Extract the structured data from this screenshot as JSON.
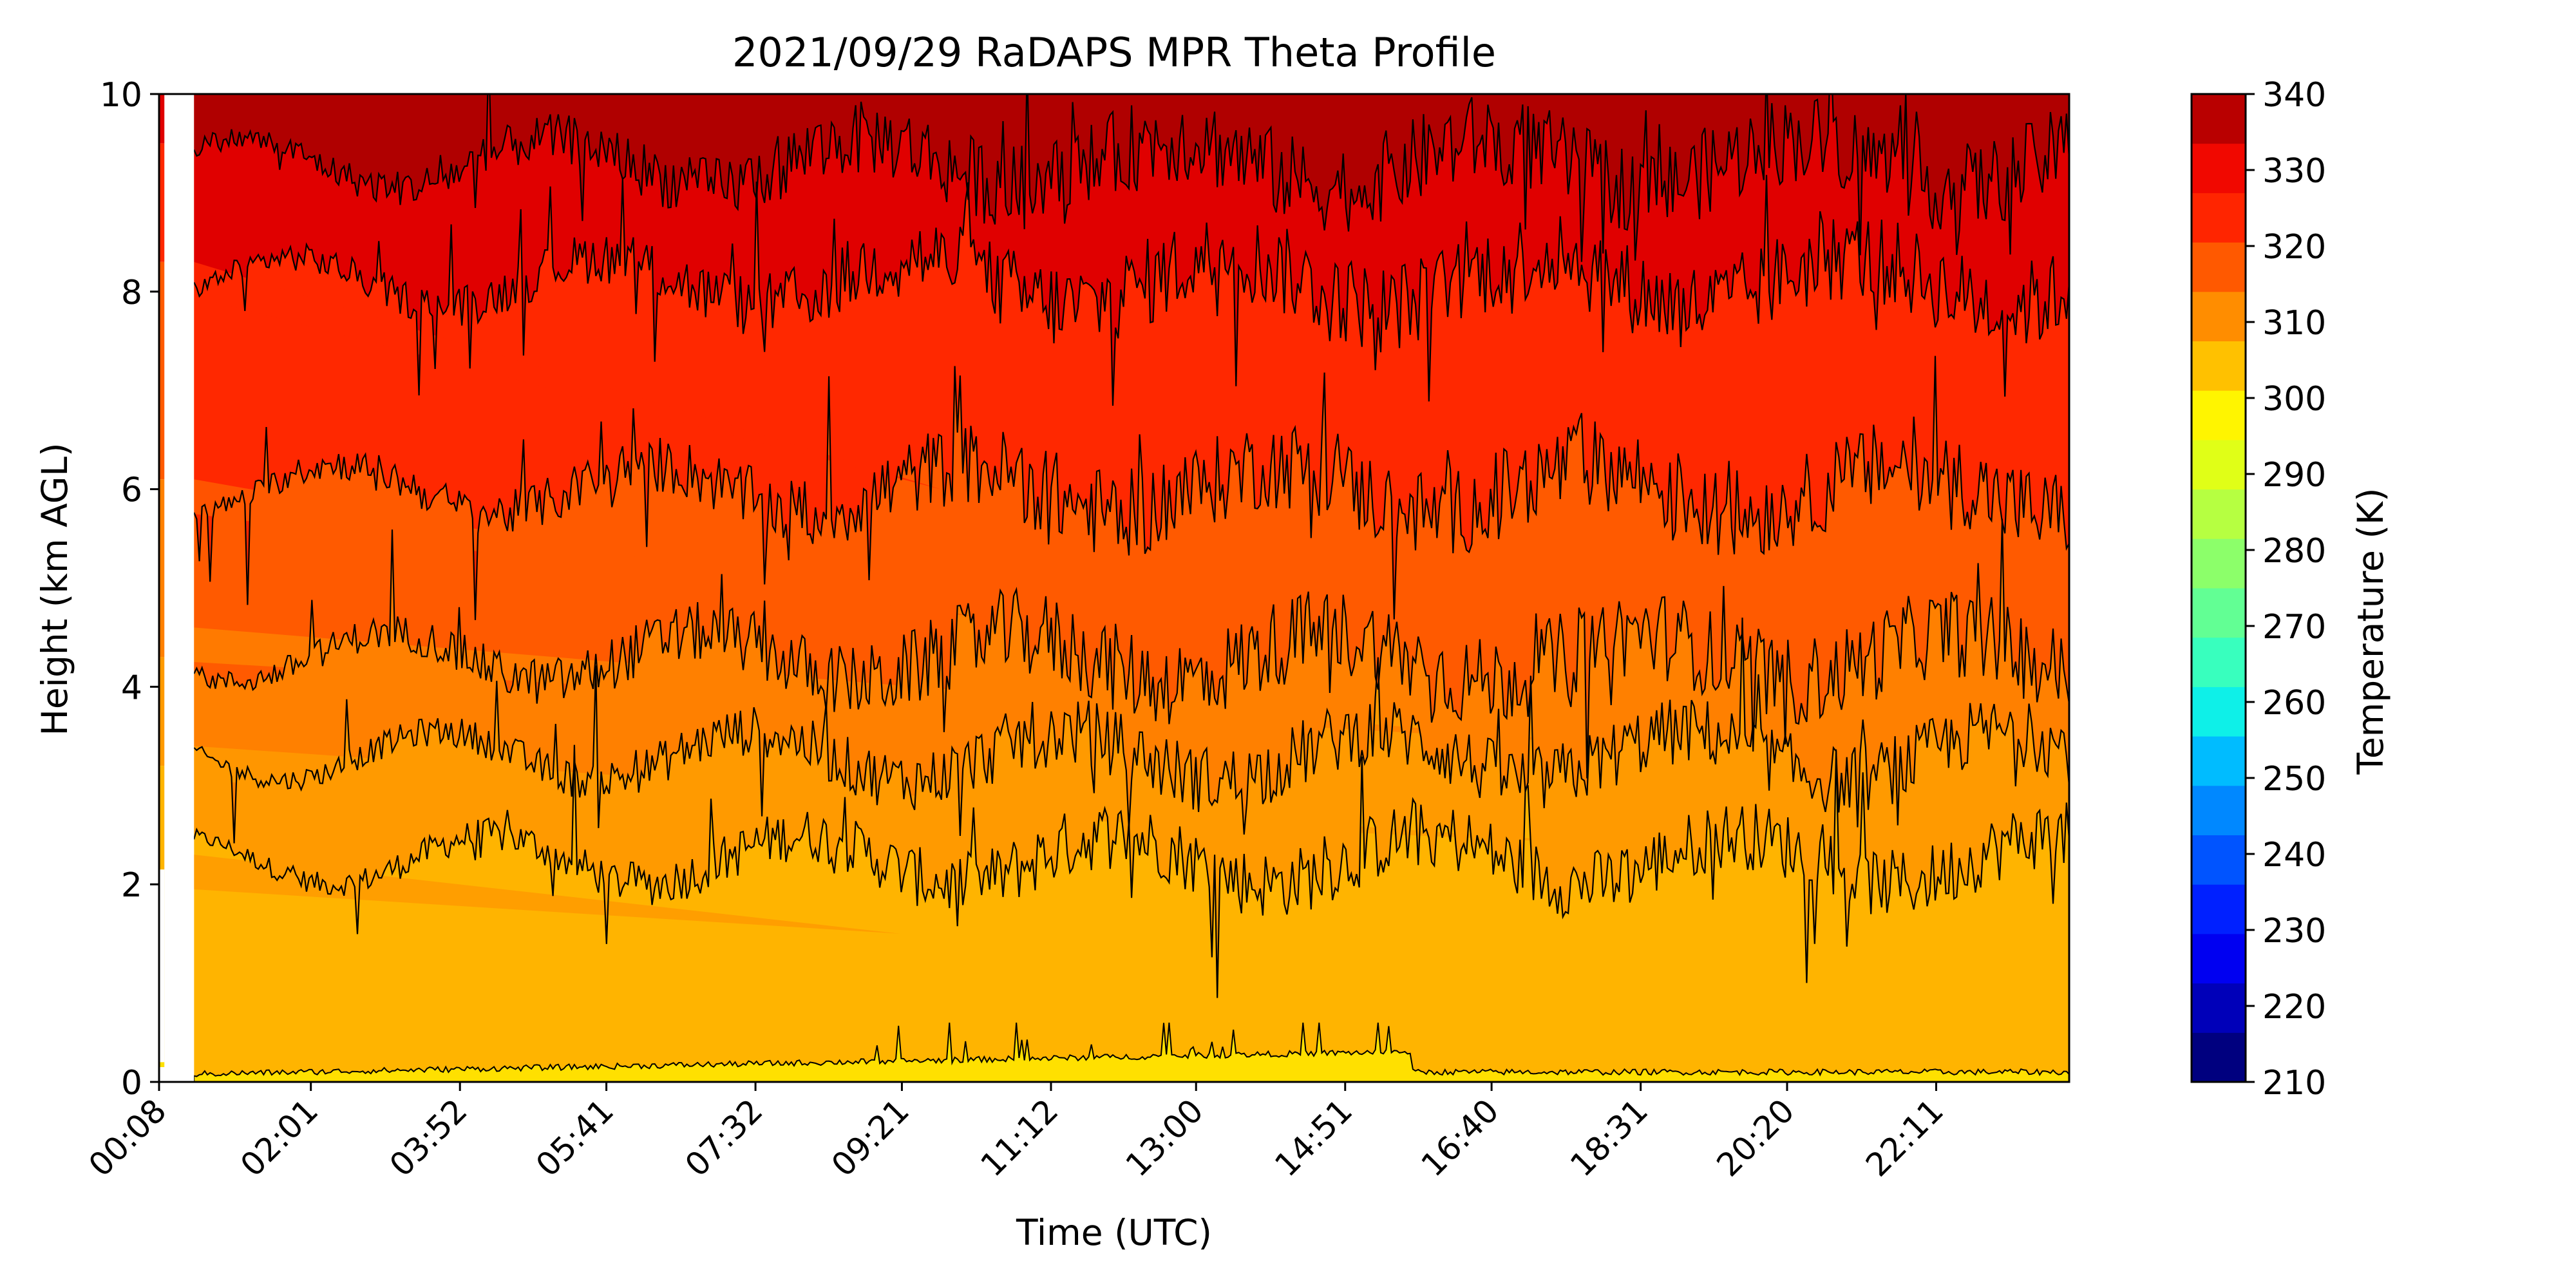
{
  "chart_data": {
    "type": "heatmap",
    "subtype": "filled-contour",
    "title": "2021/09/29 RaDAPS MPR Theta Profile",
    "xlabel": "Time (UTC)",
    "ylabel": "Height (km AGL)",
    "x_tick_labels": [
      "00:08",
      "02:01",
      "03:52",
      "05:41",
      "07:32",
      "09:21",
      "11:12",
      "13:00",
      "14:51",
      "16:40",
      "18:31",
      "20:20",
      "22:11"
    ],
    "x_tick_minutes": [
      8,
      121,
      232,
      341,
      452,
      561,
      672,
      780,
      891,
      1000,
      1111,
      1220,
      1331
    ],
    "xlim_minutes": [
      8,
      1430
    ],
    "ylim": [
      0,
      10
    ],
    "y_ticks": [
      0,
      2,
      4,
      6,
      8,
      10
    ],
    "colorbar": {
      "label": "Temperature (K)",
      "range": [
        210,
        340
      ],
      "step": 5,
      "tick_values": [
        210,
        220,
        230,
        240,
        250,
        260,
        270,
        280,
        290,
        300,
        310,
        320,
        330,
        340
      ],
      "colormap": "jet",
      "level_colors": [
        "#00007f",
        "#0000b9",
        "#0000f1",
        "#0020ff",
        "#0054ff",
        "#0088ff",
        "#00bcff",
        "#0ef0e8",
        "#38ffbe",
        "#62ff94",
        "#8cff6a",
        "#b6ff41",
        "#e0ff17",
        "#fff500",
        "#ffc100",
        "#ff8d00",
        "#ff5900",
        "#ff2500",
        "#f10800",
        "#b90000"
      ]
    },
    "layers": [
      {
        "level_K": 300,
        "fill": "#ffb400",
        "surface_km": 0.1
      },
      {
        "level_K": 305,
        "fill": "#ff9a00",
        "surface_km": 2.25
      },
      {
        "level_K": 310,
        "fill": "#ff8000",
        "surface_km": 3.3
      },
      {
        "level_K": 315,
        "fill": "#ff5a00",
        "surface_km": 4.3
      },
      {
        "level_K": 320,
        "fill": "#ff2800",
        "surface_km": 6.0
      },
      {
        "level_K": 325,
        "fill": "#e00000",
        "surface_km": 8.1
      },
      {
        "level_K": 330,
        "fill": "#b00000",
        "surface_km": 9.3
      }
    ],
    "surface_layer": {
      "level_K": 295,
      "fill": "#ffe000",
      "max_height_km": 0.6
    },
    "data_gap_minutes": [
      8,
      34
    ],
    "contour_color": "#000000"
  }
}
